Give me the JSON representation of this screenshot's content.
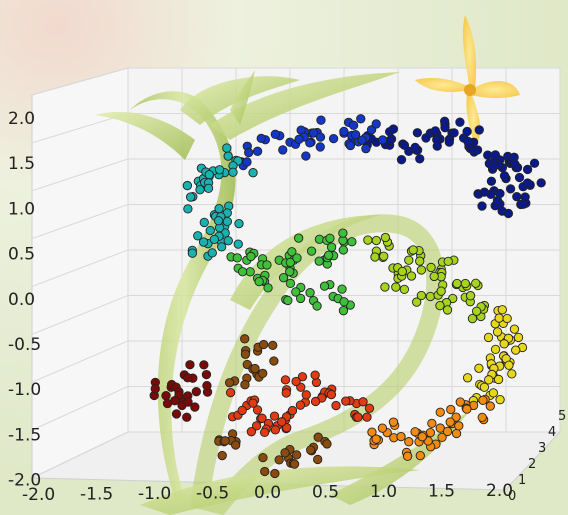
{
  "chart_data": {
    "type": "scatter",
    "projection": "3d",
    "title": "",
    "xlabel": "",
    "ylabel": "",
    "zlabel": "",
    "grid": true,
    "legend": "none",
    "xlim": [
      -2.0,
      2.0
    ],
    "zlim": [
      -2.0,
      2.0
    ],
    "x_ticks": [
      "-2.0",
      "-1.5",
      "-1.0",
      "-0.5",
      "0.0",
      "0.5",
      "1.0",
      "1.5",
      "2.0"
    ],
    "z_ticks": [
      "2.0",
      "1.5",
      "1.0",
      "0.5",
      "0.0",
      "-0.5",
      "-1.0",
      "-1.5",
      "-2.0"
    ],
    "y_ticks": [
      "0",
      "1",
      "2",
      "3",
      "4",
      "5"
    ],
    "colormap": "jet",
    "description_of_shape": "points arranged along a curve forming the digit 6",
    "series": [
      {
        "color_group": "navy",
        "points": [
          [
            0.6,
            1.6
          ],
          [
            0.8,
            1.8
          ],
          [
            1.0,
            1.8
          ],
          [
            1.2,
            1.7
          ],
          [
            1.4,
            1.5
          ],
          [
            1.5,
            1.3
          ],
          [
            1.6,
            1.1
          ],
          [
            1.4,
            1.0
          ],
          [
            1.7,
            1.4
          ],
          [
            0.3,
            1.7
          ]
        ]
      },
      {
        "color_group": "blue",
        "points": [
          [
            0.0,
            1.8
          ],
          [
            -0.3,
            1.8
          ],
          [
            -0.5,
            1.7
          ],
          [
            -0.8,
            1.6
          ],
          [
            0.2,
            1.75
          ]
        ]
      },
      {
        "color_group": "cyan",
        "points": [
          [
            -1.0,
            1.5
          ],
          [
            -1.3,
            1.3
          ],
          [
            -1.4,
            1.1
          ],
          [
            -1.2,
            0.9
          ],
          [
            -1.1,
            0.7
          ],
          [
            -1.3,
            0.6
          ]
        ]
      },
      {
        "color_group": "green",
        "points": [
          [
            -0.9,
            0.4
          ],
          [
            -0.6,
            0.4
          ],
          [
            -0.3,
            0.5
          ],
          [
            0.0,
            0.6
          ],
          [
            -0.8,
            0.2
          ],
          [
            -0.4,
            0.1
          ],
          [
            -0.1,
            0.0
          ]
        ]
      },
      {
        "color_group": "lime",
        "points": [
          [
            0.3,
            0.5
          ],
          [
            0.6,
            0.4
          ],
          [
            0.9,
            0.3
          ],
          [
            1.1,
            0.1
          ],
          [
            1.3,
            -0.1
          ],
          [
            0.5,
            0.2
          ],
          [
            0.8,
            0.0
          ]
        ]
      },
      {
        "color_group": "yellow",
        "points": [
          [
            1.4,
            -0.3
          ],
          [
            1.5,
            -0.5
          ],
          [
            1.5,
            -0.7
          ],
          [
            1.4,
            -0.9
          ],
          [
            1.3,
            -1.0
          ]
        ]
      },
      {
        "color_group": "orange",
        "points": [
          [
            1.2,
            -1.2
          ],
          [
            1.0,
            -1.4
          ],
          [
            0.8,
            -1.5
          ],
          [
            0.6,
            -1.6
          ],
          [
            0.4,
            -1.5
          ]
        ]
      },
      {
        "color_group": "red",
        "points": [
          [
            0.1,
            -1.3
          ],
          [
            -0.2,
            -1.1
          ],
          [
            -0.4,
            -1.0
          ],
          [
            -0.5,
            -1.3
          ],
          [
            -0.7,
            -1.4
          ],
          [
            -0.9,
            -1.2
          ]
        ]
      },
      {
        "color_group": "brown",
        "points": [
          [
            -0.8,
            -0.6
          ],
          [
            -0.9,
            -0.9
          ],
          [
            -1.0,
            -1.6
          ],
          [
            -0.6,
            -1.8
          ],
          [
            -0.3,
            -1.7
          ]
        ]
      },
      {
        "color_group": "darkred",
        "points": [
          [
            -1.6,
            -1.0
          ],
          [
            -1.5,
            -1.2
          ],
          [
            -1.4,
            -0.9
          ]
        ]
      }
    ]
  },
  "decor": {
    "flower_icon": "yellow-flower",
    "stem_color": "#b7cf6a",
    "leaf_color": "#c9dc8a"
  }
}
